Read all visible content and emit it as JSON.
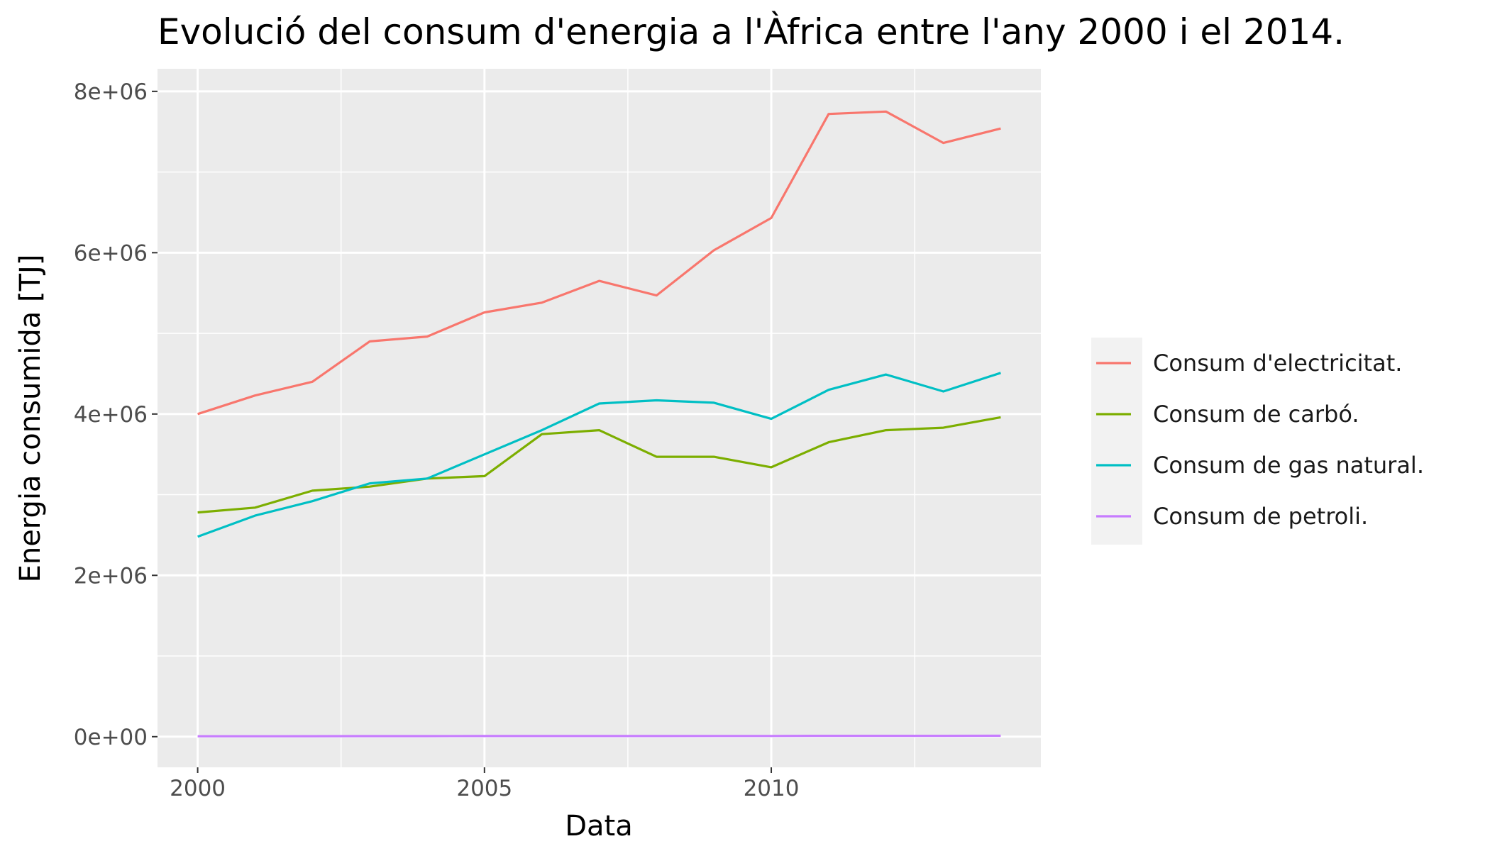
{
  "chart_data": {
    "type": "line",
    "title": "Evolució del consum d'energia a l'Àfrica entre l'any 2000 i el 2014.",
    "xlabel": "Data",
    "ylabel": "Energia consumida [TJ]",
    "xlim": [
      1999.3,
      2014.7
    ],
    "ylim": [
      -380000,
      8280000
    ],
    "x_ticks": [
      2000,
      2005,
      2010
    ],
    "y_ticks": [
      0,
      2000000,
      4000000,
      6000000,
      8000000
    ],
    "y_tick_labels": [
      "0e+00",
      "2e+06",
      "4e+06",
      "6e+06",
      "8e+06"
    ],
    "grid": true,
    "legend_position": "right",
    "background": "#ebebeb",
    "x": [
      2000,
      2001,
      2002,
      2003,
      2004,
      2005,
      2006,
      2007,
      2008,
      2009,
      2010,
      2011,
      2012,
      2013,
      2014
    ],
    "series": [
      {
        "name": "Consum d'electricitat.",
        "color": "#f8766d",
        "values": [
          4000000,
          4230000,
          4400000,
          4900000,
          4960000,
          5260000,
          5380000,
          5650000,
          5470000,
          6030000,
          6430000,
          7720000,
          7750000,
          7360000,
          7540000
        ]
      },
      {
        "name": "Consum de carbó.",
        "color": "#7cae00",
        "values": [
          2780000,
          2840000,
          3050000,
          3100000,
          3200000,
          3230000,
          3750000,
          3800000,
          3470000,
          3470000,
          3340000,
          3650000,
          3800000,
          3830000,
          3960000
        ]
      },
      {
        "name": "Consum de gas natural.",
        "color": "#00bfc4",
        "values": [
          2480000,
          2740000,
          2920000,
          3140000,
          3200000,
          3500000,
          3800000,
          4130000,
          4170000,
          4140000,
          3940000,
          4300000,
          4490000,
          4280000,
          4510000
        ]
      },
      {
        "name": "Consum de petroli.",
        "color": "#c77cff",
        "values": [
          5000,
          5000,
          6000,
          7000,
          7000,
          8000,
          8000,
          8000,
          8000,
          9000,
          9000,
          10000,
          10000,
          10000,
          11000
        ]
      }
    ]
  }
}
